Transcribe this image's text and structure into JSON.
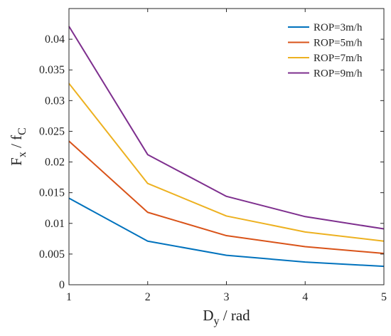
{
  "chart_data": {
    "type": "line",
    "x": [
      1,
      2,
      3,
      4,
      5
    ],
    "xlim": [
      1,
      5
    ],
    "ylim": [
      0,
      0.045
    ],
    "xticks": [
      "1",
      "2",
      "3",
      "4",
      "5"
    ],
    "yticks": [
      "0",
      "0.005",
      "0.01",
      "0.015",
      "0.02",
      "0.025",
      "0.03",
      "0.035",
      "0.04"
    ],
    "ytick_values": [
      0,
      0.005,
      0.01,
      0.015,
      0.02,
      0.025,
      0.03,
      0.035,
      0.04
    ],
    "xlabel": {
      "main": "D",
      "sub": "y",
      "rest": " / rad"
    },
    "ylabel": {
      "main1": "F",
      "sub1": "x",
      "mid": " / f",
      "sub2": "C"
    },
    "grid": false,
    "legend_position": "top-right",
    "series": [
      {
        "name": "ROP=3m/h",
        "color": "#0072BD",
        "values": [
          0.0141,
          0.0071,
          0.0048,
          0.0037,
          0.003
        ]
      },
      {
        "name": "ROP=5m/h",
        "color": "#D95319",
        "values": [
          0.0234,
          0.0118,
          0.008,
          0.0062,
          0.0051
        ]
      },
      {
        "name": "ROP=7m/h",
        "color": "#EDB120",
        "values": [
          0.0328,
          0.0165,
          0.0112,
          0.0086,
          0.0071
        ]
      },
      {
        "name": "ROP=9m/h",
        "color": "#7E2F8E",
        "values": [
          0.0421,
          0.0212,
          0.0144,
          0.0111,
          0.0091
        ]
      }
    ]
  }
}
